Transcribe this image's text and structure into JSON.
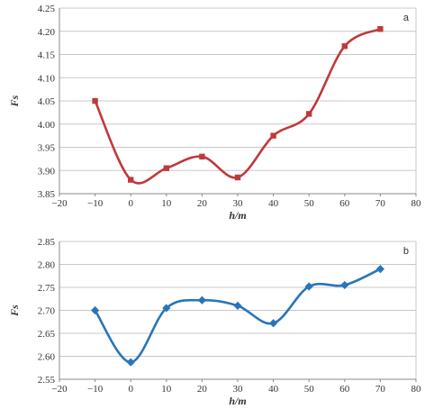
{
  "chart_data": [
    {
      "type": "line",
      "panel_label": "a",
      "xlabel": "h/m",
      "ylabel": "Fs",
      "xlim": [
        -20,
        80
      ],
      "ylim": [
        3.85,
        4.25
      ],
      "xticks": [
        "−20",
        "−10",
        "0",
        "10",
        "20",
        "30",
        "40",
        "50",
        "60",
        "70",
        "80"
      ],
      "yticks": [
        "3.85",
        "3.90",
        "3.95",
        "4.00",
        "4.05",
        "4.10",
        "4.15",
        "4.20",
        "4.25"
      ],
      "grid": true,
      "smooth": true,
      "marker": "square",
      "color": "#c0393b",
      "series": [
        {
          "x": [
            -10,
            0,
            10,
            20,
            30,
            40,
            50,
            60,
            70
          ],
          "y": [
            4.05,
            3.88,
            3.905,
            3.93,
            3.885,
            3.975,
            4.022,
            4.168,
            4.205
          ]
        }
      ]
    },
    {
      "type": "line",
      "panel_label": "b",
      "xlabel": "h/m",
      "ylabel": "Fs",
      "xlim": [
        -20,
        80
      ],
      "ylim": [
        2.55,
        2.85
      ],
      "xticks": [
        "−20",
        "−10",
        "0",
        "10",
        "20",
        "30",
        "40",
        "50",
        "60",
        "70",
        "80"
      ],
      "yticks": [
        "2.55",
        "2.60",
        "2.65",
        "2.70",
        "2.75",
        "2.80",
        "2.85"
      ],
      "ytick_display": [
        "2.55",
        "2.60",
        "2.65",
        "2.70",
        "2.75",
        "2.80",
        "2.85"
      ],
      "grid": true,
      "smooth": true,
      "marker": "diamond",
      "color": "#2a75b8",
      "series": [
        {
          "x": [
            -10,
            0,
            10,
            20,
            30,
            40,
            50,
            60,
            70
          ],
          "y": [
            2.7,
            2.587,
            2.705,
            2.722,
            2.71,
            2.672,
            2.752,
            2.755,
            2.79
          ]
        }
      ]
    }
  ]
}
